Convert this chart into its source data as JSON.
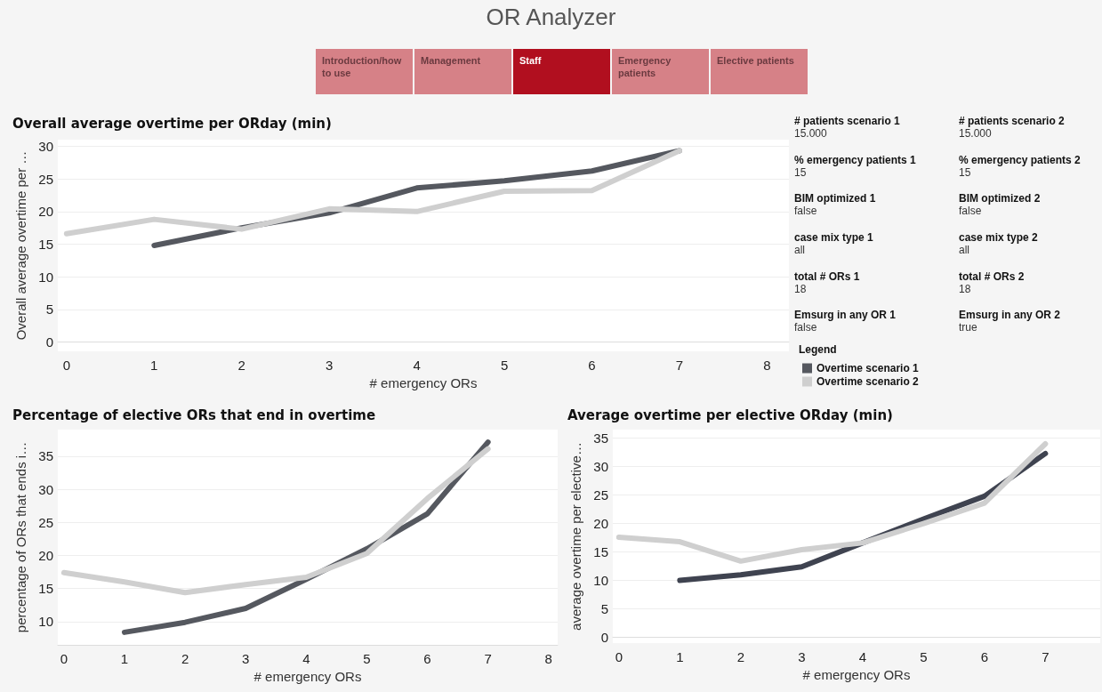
{
  "chart_data": [
    {
      "type": "other",
      "title": "OR Analyzer",
      "categories": [
        "Introduction/how to use",
        "Management",
        "Staff",
        "Emergency patients",
        "Elective patients"
      ],
      "colors": [
        "#d68187",
        "#d68187",
        "#b10f1f",
        "#d68187",
        "#d68187"
      ]
    },
    {
      "type": "line",
      "title": "Overall average overtime per ORday (min)",
      "xlabel": "# emergency ORs",
      "ylabel": "Overall average overtime per …",
      "legend_title": "Legend",
      "legend": "right",
      "xlim": [
        -0.1,
        8.25
      ],
      "xticks": [
        0,
        1,
        2,
        3,
        4,
        5,
        6,
        7,
        8
      ],
      "ylim": [
        -1.4,
        31
      ],
      "yticks": [
        0,
        5,
        10,
        15,
        20,
        25,
        30
      ],
      "grid": "y",
      "marker": "none",
      "line_style": "solid",
      "series": [
        {
          "name": "Overtime scenario 1",
          "color": "#55585f",
          "x": [
            1,
            2,
            3,
            4,
            5,
            6,
            7
          ],
          "values": [
            14.8,
            17.5,
            19.8,
            23.6,
            24.7,
            26.2,
            29.3
          ]
        },
        {
          "name": "Overtime scenario 2",
          "color": "#cfcfcf",
          "x": [
            0,
            1,
            2,
            3,
            4,
            5,
            6,
            7
          ],
          "values": [
            16.6,
            18.8,
            17.3,
            20.4,
            20.0,
            23.1,
            23.2,
            29.3
          ]
        }
      ]
    },
    {
      "type": "other",
      "annotations": [
        "# patients scenario 1",
        "15.000",
        "# patients scenario 2",
        "15.000",
        "% emergency patients 1",
        "15",
        "% emergency patients 2",
        "15",
        "BIM optimized 1",
        "false",
        "BIM optimized 2",
        "false",
        "case mix type 1",
        "all",
        "case mix type 2",
        "all",
        "total # ORs 1",
        "18",
        "total # ORs 2",
        "18",
        "Emsurg in any OR 1",
        "false",
        "Emsurg in any OR 2",
        "true"
      ]
    },
    {
      "type": "line",
      "title": "Percentage of elective ORs that end in overtime",
      "xlabel": "# emergency ORs",
      "ylabel": "percentage of ORs that ends i…",
      "xlim": [
        -0.1,
        8.15
      ],
      "xticks": [
        0,
        1,
        2,
        3,
        4,
        5,
        6,
        7,
        8
      ],
      "ylim": [
        6.5,
        39
      ],
      "yticks": [
        10,
        15,
        20,
        25,
        30,
        35
      ],
      "grid": "y",
      "marker": "none",
      "line_style": "solid",
      "series": [
        {
          "color": "#55585f",
          "x": [
            1,
            2,
            3,
            4,
            5,
            6,
            7
          ],
          "values": [
            8.4,
            9.9,
            12.0,
            16.4,
            21.0,
            26.3,
            37.1
          ]
        },
        {
          "color": "#cfcfcf",
          "x": [
            0,
            1,
            2,
            3,
            4,
            5,
            6,
            7
          ],
          "values": [
            17.4,
            16.0,
            14.4,
            15.6,
            16.7,
            20.3,
            28.6,
            36.1
          ]
        }
      ]
    },
    {
      "type": "line",
      "title": "Average overtime per elective ORday (min)",
      "xlabel": "# emergency ORs",
      "ylabel": "average overtime per elective…",
      "xlim": [
        -0.1,
        7.9
      ],
      "xticks": [
        0,
        1,
        2,
        3,
        4,
        5,
        6,
        7
      ],
      "ylim": [
        -1,
        36.5
      ],
      "yticks": [
        0,
        5,
        10,
        15,
        20,
        25,
        30,
        35
      ],
      "grid": "y",
      "marker": "none",
      "line_style": "solid",
      "series": [
        {
          "color": "#3f4350",
          "x": [
            1,
            2,
            3,
            4,
            5,
            6,
            7
          ],
          "values": [
            10.0,
            11.0,
            12.4,
            16.6,
            20.8,
            24.8,
            32.3
          ]
        },
        {
          "color": "#cfcfcf",
          "x": [
            0,
            1,
            2,
            3,
            4,
            5,
            6,
            7
          ],
          "values": [
            17.6,
            16.8,
            13.4,
            15.4,
            16.6,
            20.0,
            23.6,
            34.0
          ]
        }
      ]
    }
  ]
}
